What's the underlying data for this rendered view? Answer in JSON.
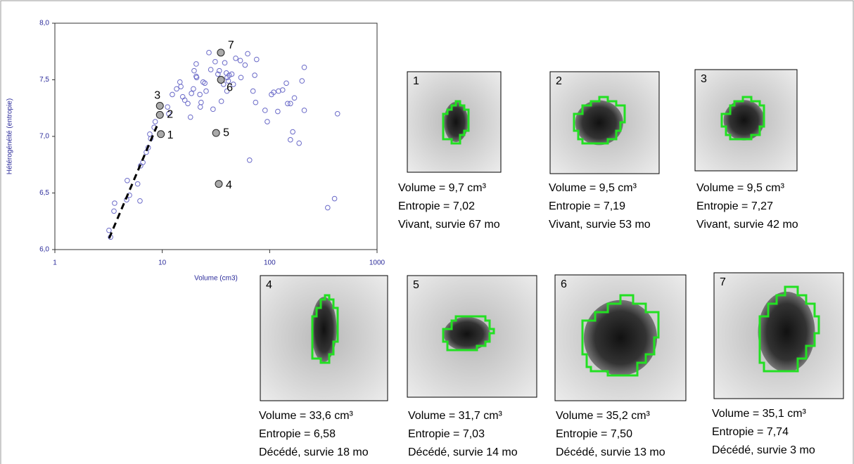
{
  "chart_data": {
    "type": "scatter",
    "x_label": "Volume (cm3)",
    "y_label": "Hétérogénéité (entropie)",
    "log_x": true,
    "xlim": [
      1,
      1000
    ],
    "xticks": [
      1,
      10,
      100,
      1000
    ],
    "ylim": [
      6,
      8
    ],
    "yticks": [
      {
        "value": 6,
        "label": "6,0"
      },
      {
        "value": 6.5,
        "label": "6,5"
      },
      {
        "value": 7,
        "label": "7,0"
      },
      {
        "value": 7.5,
        "label": "7,5"
      },
      {
        "value": 8,
        "label": "8,0"
      }
    ],
    "color": "#6a6ac8",
    "axis_color": "#2a2a9a",
    "x": [
      3.19,
      3.3,
      3.6,
      3.55,
      4.66,
      4.95,
      4.72,
      6.2,
      5.9,
      6.28,
      6.6,
      7.1,
      7.4,
      7.65,
      7.8,
      8.4,
      8.6,
      11.2,
      11.5,
      12.4,
      13.6,
      14.6,
      14.9,
      15.5,
      16.2,
      17.3,
      18.3,
      18.7,
      19.5,
      19.8,
      20.7,
      20.7,
      20.9,
      22.4,
      23,
      22.6,
      24,
      24.9,
      25.6,
      27.2,
      28.3,
      31.1,
      29.7,
      33,
      34,
      37.2,
      35.5,
      38.2,
      39.5,
      40.2,
      41.2,
      40,
      42,
      44.4,
      45.9,
      48.3,
      53.3,
      54,
      59,
      62.4,
      65,
      70,
      72.6,
      75.6,
      74,
      90.6,
      95,
      104,
      109,
      119,
      121,
      132,
      143,
      147,
      156,
      156,
      164,
      170,
      188,
      200,
      210,
      210,
      347,
      402,
      428
    ],
    "values": [
      6.17,
      6.11,
      6.41,
      6.34,
      6.44,
      6.48,
      6.61,
      6.43,
      6.58,
      6.74,
      6.77,
      6.86,
      6.9,
      7.02,
      6.98,
      7.08,
      7.13,
      7.26,
      7.2,
      7.37,
      7.42,
      7.48,
      7.44,
      7.35,
      7.32,
      7.29,
      7.17,
      7.38,
      7.42,
      7.58,
      7.64,
      7.53,
      7.52,
      7.37,
      7.3,
      7.26,
      7.48,
      7.47,
      7.4,
      7.74,
      7.59,
      7.66,
      7.24,
      7.55,
      7.58,
      7.46,
      7.31,
      7.65,
      7.56,
      7.52,
      7.49,
      7.4,
      7.54,
      7.55,
      7.46,
      7.69,
      7.67,
      7.52,
      7.63,
      7.73,
      6.79,
      7.4,
      7.54,
      7.68,
      7.3,
      7.23,
      7.13,
      7.37,
      7.39,
      7.22,
      7.4,
      7.41,
      7.47,
      7.29,
      7.29,
      6.97,
      7.04,
      7.34,
      6.94,
      7.49,
      7.61,
      7.23,
      6.37,
      6.45,
      7.2
    ],
    "highlighted": [
      {
        "label": "1",
        "x": 9.7,
        "y": 7.02
      },
      {
        "label": "2",
        "x": 9.5,
        "y": 7.19
      },
      {
        "label": "3",
        "x": 9.5,
        "y": 7.27
      },
      {
        "label": "4",
        "x": 33.6,
        "y": 6.58
      },
      {
        "label": "5",
        "x": 31.7,
        "y": 7.03
      },
      {
        "label": "6",
        "x": 35.2,
        "y": 7.5
      },
      {
        "label": "7",
        "x": 35.1,
        "y": 7.74
      }
    ],
    "trend_line": {
      "x": [
        3.2,
        8.9
      ],
      "y": [
        6.1,
        7.09
      ]
    }
  },
  "panels": [
    {
      "lines": [
        "Volume = 9,7 cm³",
        "Entropie = 7,02",
        "Vivant, survie 67 mo"
      ]
    },
    {
      "lines": [
        "Volume = 9,5 cm³",
        "Entropie = 7,19",
        "Vivant, survie 53 mo"
      ]
    },
    {
      "lines": [
        "Volume = 9,5 cm³",
        "Entropie = 7,27",
        "Vivant, survie 42 mo"
      ]
    },
    {
      "lines": [
        "Volume = 33,6 cm³",
        "Entropie = 6,58",
        "Décédé, survie 18 mo"
      ]
    },
    {
      "lines": [
        "Volume = 31,7 cm³",
        "Entropie = 7,03",
        "Décédé, survie 14 mo"
      ]
    },
    {
      "lines": [
        "Volume = 35,2 cm³",
        "Entropie = 7,50",
        "Décédé, survie 13 mo"
      ]
    },
    {
      "lines": [
        "Volume = 35,1 cm³",
        "Entropie = 7,74",
        "Décédé, survie 3 mo"
      ]
    }
  ]
}
